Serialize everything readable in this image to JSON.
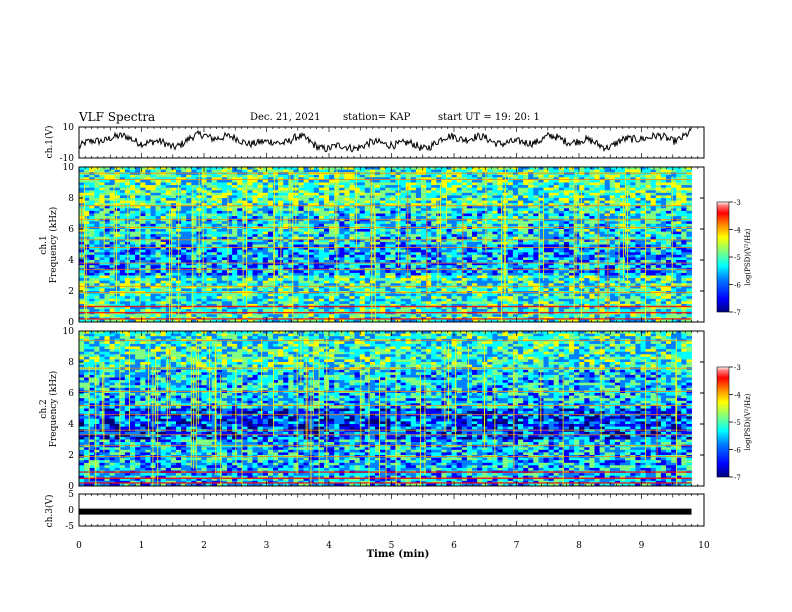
{
  "header": {
    "title": "VLF Spectra",
    "date": "Dec. 21, 2021",
    "station": "station= KAP",
    "start_time": "start  UT =   19: 20: 1"
  },
  "colors": {
    "colormap": [
      "#00007f",
      "#0000ff",
      "#0080ff",
      "#00ffff",
      "#80ff80",
      "#ffff00",
      "#ff8000",
      "#ff0000",
      "#7f0000",
      "#ffffff"
    ],
    "axis": "#000000"
  },
  "chart_data": [
    {
      "id": "ch1-waveform",
      "type": "line",
      "ylabel": "ch.1(V)",
      "ylim": [
        -10,
        10
      ],
      "yticks": [
        "10",
        "-10"
      ],
      "xlim": [
        0,
        10
      ],
      "trace_end_min": 9.8,
      "series": [
        {
          "x": [
            0,
            0.5,
            1,
            1.5,
            2,
            2.5,
            3,
            3.5,
            4,
            4.5,
            5,
            5.5,
            6,
            6.5,
            7,
            7.5,
            8,
            8.5,
            9,
            9.5,
            9.8
          ],
          "values": [
            -3,
            4,
            1,
            -2,
            5,
            2,
            -1,
            3,
            -4,
            -2,
            0,
            -3,
            4,
            2,
            -1,
            3,
            1,
            -2,
            4,
            2,
            6
          ]
        }
      ]
    },
    {
      "id": "ch1-spectrogram",
      "type": "heatmap",
      "ylabel": "ch.1",
      "ylabel2": "Frequency (kHz)",
      "ylim": [
        0,
        10
      ],
      "yticks": [
        "0",
        "2",
        "4",
        "6",
        "8",
        "10"
      ],
      "xlim": [
        0,
        10
      ],
      "colorbar": {
        "label": "log(PSD)(V²/Hz)",
        "range": [
          -7,
          -3
        ],
        "ticks": [
          "-3",
          "-4",
          "-5",
          "-6",
          "-7"
        ]
      }
    },
    {
      "id": "ch2-spectrogram",
      "type": "heatmap",
      "ylabel": "ch.2",
      "ylabel2": "Frequency (kHz)",
      "ylim": [
        0,
        10
      ],
      "yticks": [
        "0",
        "2",
        "4",
        "6",
        "8",
        "10"
      ],
      "xlim": [
        0,
        10
      ],
      "colorbar": {
        "label": "log(PSD)(V²/Hz)",
        "range": [
          -7,
          -3
        ],
        "ticks": [
          "-3",
          "-4",
          "-5",
          "-6",
          "-7"
        ]
      }
    },
    {
      "id": "ch3-waveform",
      "type": "line",
      "ylabel": "ch.3(V)",
      "ylim": [
        -5,
        5
      ],
      "yticks": [
        "5",
        "0",
        "-5"
      ],
      "xlim": [
        0,
        10
      ],
      "trace_end_min": 9.8,
      "series": [
        {
          "x": [
            0,
            9.8
          ],
          "values": [
            -0.5,
            -0.5
          ]
        }
      ]
    }
  ],
  "xaxis": {
    "label": "Time (min)",
    "ticks": [
      "0",
      "1",
      "2",
      "3",
      "4",
      "5",
      "6",
      "7",
      "8",
      "9",
      "10"
    ]
  }
}
